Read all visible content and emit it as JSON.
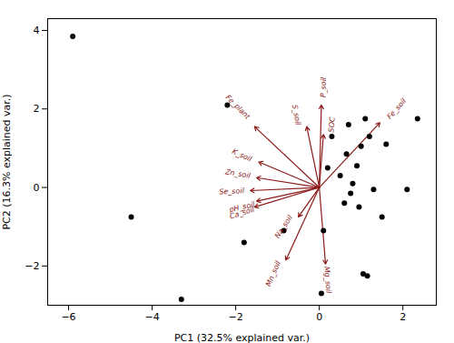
{
  "chart_data": {
    "type": "scatter",
    "xlabel": "PC1 (32.5% explained var.)",
    "ylabel": "PC2 (16.3% explained var.)",
    "xlim": [
      -6.5,
      2.8
    ],
    "ylim": [
      -3.0,
      4.3
    ],
    "xticks": [
      -6,
      -4,
      -2,
      0,
      2
    ],
    "yticks": [
      -2,
      0,
      2,
      4
    ],
    "color": "black",
    "x": [
      -5.9,
      -4.5,
      -3.3,
      -2.2,
      -1.8,
      -0.85,
      0.05,
      0.1,
      0.2,
      0.3,
      0.5,
      0.6,
      0.65,
      0.7,
      0.75,
      0.8,
      0.9,
      0.95,
      1.0,
      1.05,
      1.1,
      1.15,
      1.2,
      1.3,
      1.5,
      1.6,
      2.1,
      2.35
    ],
    "y": [
      3.85,
      -0.75,
      -2.85,
      2.1,
      -1.4,
      -1.1,
      -2.7,
      -1.1,
      0.5,
      1.3,
      0.3,
      -0.4,
      0.85,
      1.6,
      -0.15,
      0.1,
      0.55,
      -0.5,
      1.05,
      -2.2,
      1.75,
      -2.25,
      1.3,
      -0.05,
      -0.75,
      1.1,
      -0.05,
      1.75
    ],
    "arrows": {
      "color": "#8B1A1A",
      "origin": [
        0,
        0
      ],
      "vectors": [
        {
          "label": "Fe_plant",
          "x": -1.55,
          "y": 1.55,
          "label_x": -1.95,
          "label_y": 2.05
        },
        {
          "label": "K_soil",
          "x": -1.45,
          "y": 0.65,
          "label_x": -1.85,
          "label_y": 0.82
        },
        {
          "label": "Zn_soil",
          "x": -1.5,
          "y": 0.25,
          "label_x": -1.95,
          "label_y": 0.35
        },
        {
          "label": "Se_soil",
          "x": -1.65,
          "y": -0.08,
          "label_x": -2.1,
          "label_y": -0.1
        },
        {
          "label": "pH_soil",
          "x": -1.5,
          "y": -0.35,
          "label_x": -1.85,
          "label_y": -0.5
        },
        {
          "label": "Ca_soil",
          "x": -1.55,
          "y": -0.5,
          "label_x": -1.85,
          "label_y": -0.65
        },
        {
          "label": "Na_soil",
          "x": -0.5,
          "y": -0.75,
          "label_x": -0.85,
          "label_y": -1.0
        },
        {
          "label": "Mn_soil",
          "x": -0.8,
          "y": -1.85,
          "label_x": -1.1,
          "label_y": -2.2
        },
        {
          "label": "Mg_soil",
          "x": 0.15,
          "y": -1.95,
          "label_x": 0.2,
          "label_y": -2.35
        },
        {
          "label": "S_soil",
          "x": -0.3,
          "y": 1.55,
          "label_x": -0.55,
          "label_y": 1.85
        },
        {
          "label": "P_soil",
          "x": 0.05,
          "y": 2.1,
          "label_x": 0.1,
          "label_y": 2.55
        },
        {
          "label": "SOC",
          "x": 0.1,
          "y": 1.35,
          "label_x": 0.3,
          "label_y": 1.6
        },
        {
          "label": "Fe_soil",
          "x": 1.45,
          "y": 1.65,
          "label_x": 1.85,
          "label_y": 2.0
        }
      ]
    }
  }
}
